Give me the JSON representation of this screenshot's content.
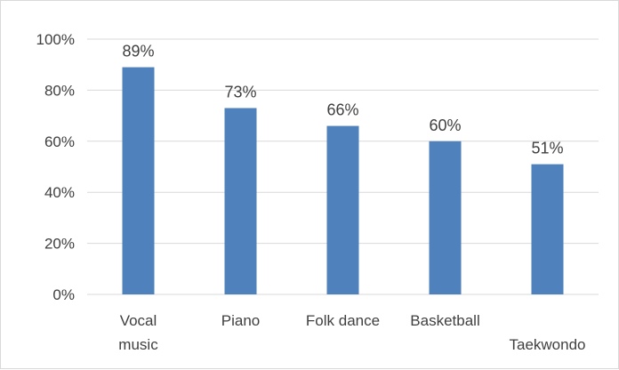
{
  "chart_data": {
    "type": "bar",
    "categories": [
      [
        "Vocal",
        "music"
      ],
      [
        "Piano"
      ],
      [
        "Folk dance"
      ],
      [
        "Basketball"
      ],
      [
        "",
        "Taekwondo"
      ]
    ],
    "values": [
      89,
      73,
      66,
      60,
      51
    ],
    "data_labels": [
      "89%",
      "73%",
      "66%",
      "60%",
      "51%"
    ],
    "y_ticks": [
      {
        "value": 0,
        "label": "0%"
      },
      {
        "value": 20,
        "label": "20%"
      },
      {
        "value": 40,
        "label": "40%"
      },
      {
        "value": 60,
        "label": "60%"
      },
      {
        "value": 80,
        "label": "80%"
      },
      {
        "value": 100,
        "label": "100%"
      }
    ],
    "ylim": [
      0,
      100
    ],
    "grid": true,
    "legend": "none",
    "bar_color": "#4f81bd",
    "grid_color": "#d9d9d9"
  }
}
